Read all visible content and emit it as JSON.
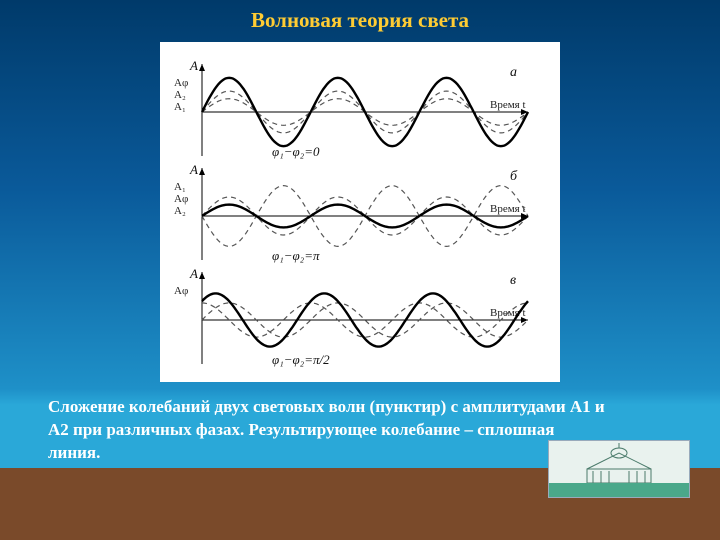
{
  "title": "Волновая теория света",
  "caption": "Сложение колебаний двух световых волн (пунктир) с амплитудами А1 и А2 при различных фазах. Результирующее колебание – сплошная линия.",
  "figure": {
    "background": "#ffffff",
    "axis_color": "#000000",
    "dashed_color": "#555555",
    "solid_color": "#000000",
    "solid_stroke": 2.4,
    "dashed_stroke": 1.2,
    "x_axis_label": "Время t",
    "y_axis_label": "A",
    "cycles": 3,
    "panels": [
      {
        "tag": "а",
        "phase_label": "φ₁−φ₂=0",
        "A1": 0.35,
        "A2": 0.55,
        "phase_deg": 0,
        "y_markers": [
          "Aφ",
          "A₂",
          "A₁"
        ],
        "result_amp": 0.9
      },
      {
        "tag": "б",
        "phase_label": "φ₁−φ₂=π",
        "A1": 0.5,
        "A2": 0.8,
        "phase_deg": 180,
        "y_markers": [
          "A₁",
          "Aφ",
          "A₂"
        ],
        "result_amp": 0.3
      },
      {
        "tag": "в",
        "phase_label": "φ₁−φ₂=π/2",
        "A1": 0.45,
        "A2": 0.45,
        "phase_deg": 90,
        "y_markers": [
          "Aφ"
        ],
        "result_amp": 0.7,
        "result_shift": 45
      }
    ]
  },
  "colors": {
    "slide_top": "#003a6a",
    "slide_bottom": "#2aa8d8",
    "ground": "#7a4a2a",
    "title": "#ffcc33",
    "caption": "#ffffff",
    "badge_bg": "#e9f2ee",
    "badge_accent": "#4aa88a"
  }
}
